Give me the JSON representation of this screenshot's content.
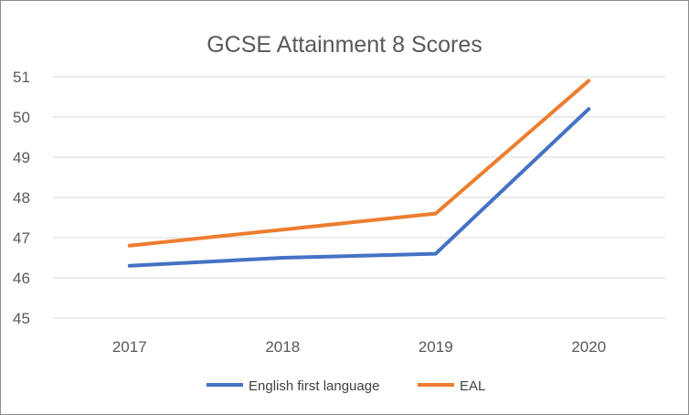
{
  "chart_data": {
    "type": "line",
    "title": "GCSE Attainment 8 Scores",
    "categories": [
      "2017",
      "2018",
      "2019",
      "2020"
    ],
    "y_ticks": [
      "45",
      "46",
      "47",
      "48",
      "49",
      "50",
      "51"
    ],
    "ylim": [
      45,
      51
    ],
    "grid": true,
    "legend_position": "bottom",
    "series": [
      {
        "name": "English first language",
        "color": "#4472C4",
        "values": [
          46.3,
          46.5,
          46.6,
          50.2
        ]
      },
      {
        "name": "EAL",
        "color": "#ED7D31",
        "values": [
          46.8,
          47.2,
          47.6,
          50.9
        ]
      }
    ]
  }
}
